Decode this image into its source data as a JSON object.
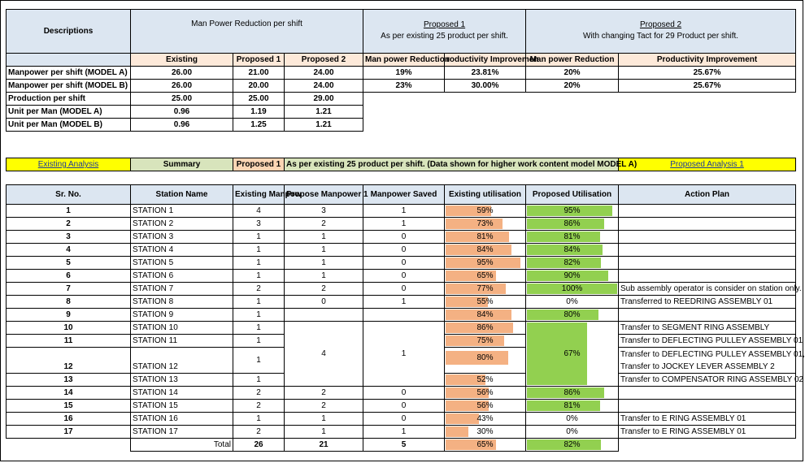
{
  "top": {
    "descriptions": "Descriptions",
    "mpr_title": "Man Power Reduction per shift",
    "p1_title": "Proposed 1",
    "p1_sub": "As per existing 25 product per shift.",
    "p2_title": "Proposed 2",
    "p2_sub": "With changing Tact for 29 Product per shift.",
    "col_existing": "Existing",
    "col_prop1": "Proposed 1",
    "col_prop2": "Proposed 2",
    "col_mpr1": "Man power Reduction",
    "col_pi1": "roductivity Improvemen",
    "col_mpr2": "Man power Reduction",
    "col_pi2": "Productivity Improvement",
    "rows": [
      {
        "label": "Manpower per shift (MODEL A)",
        "existing": "26.00",
        "p1": "21.00",
        "p2": "24.00",
        "mpr1": "19%",
        "pi1": "23.81%",
        "mpr2": "20%",
        "pi2": "25.67%"
      },
      {
        "label": "Manpower per shift (MODEL B)",
        "existing": "26.00",
        "p1": "20.00",
        "p2": "24.00",
        "mpr1": "23%",
        "pi1": "30.00%",
        "mpr2": "20%",
        "pi2": "25.67%"
      },
      {
        "label": "Production per shift",
        "existing": "25.00",
        "p1": "25.00",
        "p2": "29.00"
      },
      {
        "label": "Unit per Man  (MODEL A)",
        "existing": "0.96",
        "p1": "1.19",
        "p2": "1.21"
      },
      {
        "label": "Unit per Man  (MODEL B)",
        "existing": "0.96",
        "p1": "1.25",
        "p2": "1.21"
      }
    ]
  },
  "summary_bar": {
    "existing_link": "Existing Analysis",
    "summary": "Summary",
    "proposed": "Proposed 1",
    "note": "As per existing 25 product per shift. (Data shown for higher work content model MODEL A)",
    "proposed_link": "Proposed Analysis 1"
  },
  "main": {
    "headers": [
      "Sr. No.",
      "Station Name",
      "Existing Manpow",
      "Propose Manpower 1",
      "Manpower Saved",
      "Existing utilisation",
      "Proposed Utilisation",
      "Action Plan"
    ],
    "rows": [
      {
        "sr": "1",
        "name": "STATION 1",
        "ex": "4",
        "pr": "3",
        "saved": "1",
        "eu": "59%",
        "pu": "95%",
        "plan": ""
      },
      {
        "sr": "2",
        "name": "STATION 2",
        "ex": "3",
        "pr": "2",
        "saved": "1",
        "eu": "73%",
        "pu": "86%",
        "plan": ""
      },
      {
        "sr": "3",
        "name": "STATION 3",
        "ex": "1",
        "pr": "1",
        "saved": "0",
        "eu": "81%",
        "pu": "81%",
        "plan": ""
      },
      {
        "sr": "4",
        "name": "STATION 4",
        "ex": "1",
        "pr": "1",
        "saved": "0",
        "eu": "84%",
        "pu": "84%",
        "plan": ""
      },
      {
        "sr": "5",
        "name": "STATION 5",
        "ex": "1",
        "pr": "1",
        "saved": "0",
        "eu": "95%",
        "pu": "82%",
        "plan": ""
      },
      {
        "sr": "6",
        "name": "STATION 6",
        "ex": "1",
        "pr": "1",
        "saved": "0",
        "eu": "65%",
        "pu": "90%",
        "plan": ""
      },
      {
        "sr": "7",
        "name": "STATION 7",
        "ex": "2",
        "pr": "2",
        "saved": "0",
        "eu": "77%",
        "pu": "100%",
        "plan": "Sub assembly operator is consider on station only."
      },
      {
        "sr": "8",
        "name": "STATION 8",
        "ex": "1",
        "pr": "0",
        "saved": "1",
        "eu": "55%",
        "pu": "0%",
        "plan": "Transferred to REEDRING ASSEMBLY 01"
      },
      {
        "sr": "9",
        "name": "STATION 9",
        "ex": "1",
        "eu": "84%",
        "pu": "80%",
        "plan": ""
      },
      {
        "sr": "10",
        "name": "STATION 10",
        "ex": "1",
        "eu": "86%",
        "plan": "Transfer to  SEGMENT RING ASSEMBLY"
      },
      {
        "sr": "11",
        "name": "STATION 11",
        "ex": "1",
        "eu": "75%",
        "plan": "Transfer to  DEFLECTING PULLEY ASSEMBLY 01"
      },
      {
        "sr": "12",
        "name": "STATION 12",
        "ex": "1",
        "eu": "80%",
        "plan": "Transfer to  DEFLECTING PULLEY ASSEMBLY 01,",
        "plan2": "Transfer to  JOCKEY LEVER ASSEMBLY 2"
      },
      {
        "sr": "13",
        "name": "STATION 13",
        "ex": "1",
        "eu": "52%",
        "plan": "Transfer to  COMPENSATOR RING ASSEMBLY 02"
      },
      {
        "sr": "14",
        "name": "STATION 14",
        "ex": "2",
        "pr": "2",
        "saved": "0",
        "eu": "56%",
        "pu": "86%",
        "plan": ""
      },
      {
        "sr": "15",
        "name": "STATION 15",
        "ex": "2",
        "pr": "2",
        "saved": "0",
        "eu": "56%",
        "pu": "81%",
        "plan": ""
      },
      {
        "sr": "16",
        "name": "STATION 16",
        "ex": "1",
        "pr": "1",
        "saved": "0",
        "eu": "43%",
        "pu": "0%",
        "plan": "Transfer to  E RING ASSEMBLY 01"
      },
      {
        "sr": "17",
        "name": "STATION 17",
        "ex": "2",
        "pr": "1",
        "saved": "1",
        "eu": "30%",
        "pu": "0%",
        "plan": "Transfer to  E RING ASSEMBLY 01"
      }
    ],
    "merged": {
      "pr": "4",
      "saved": "1",
      "pu": "67%"
    },
    "total": {
      "label": "Total",
      "ex": "26",
      "pr": "21",
      "saved": "5",
      "eu": "65%",
      "pu": "82%"
    }
  }
}
